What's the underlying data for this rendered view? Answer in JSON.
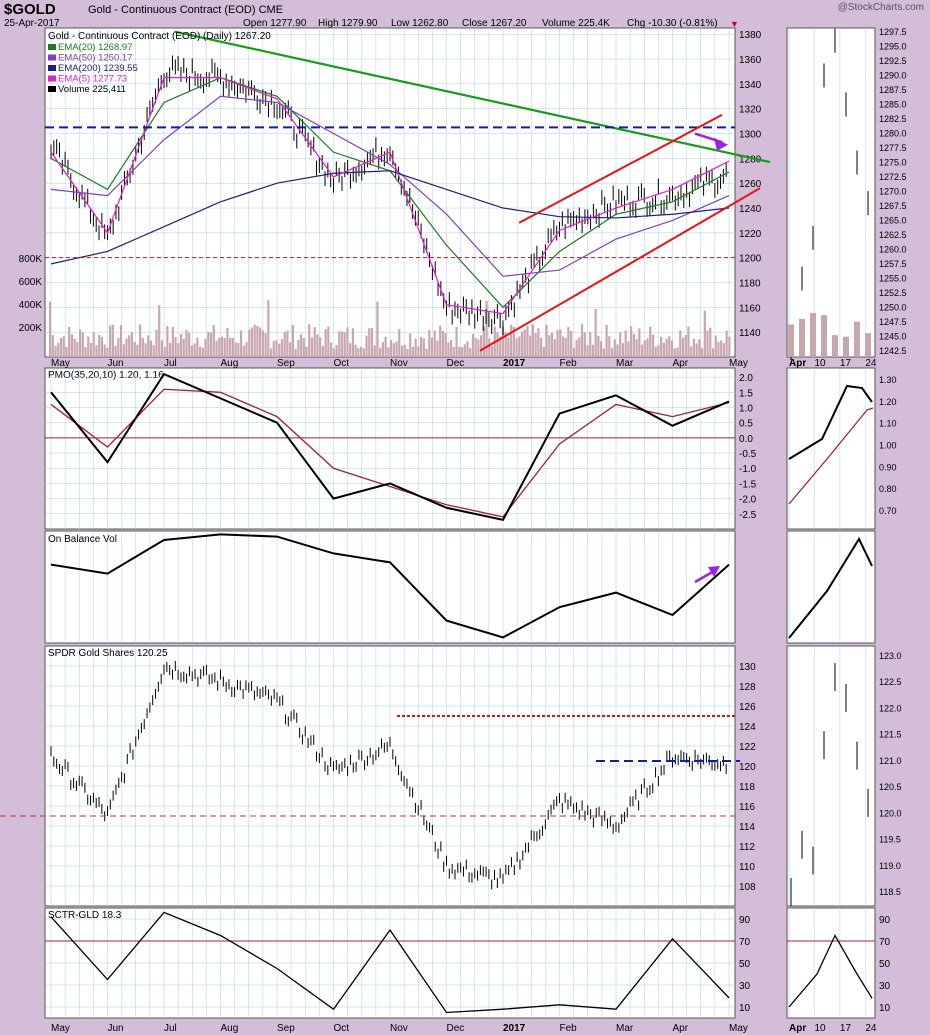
{
  "header": {
    "symbol": "$GOLD",
    "title": "Gold - Continuous Contract (EOD)  CME",
    "date": "25-Apr-2017",
    "open": "Open 1277.90",
    "high": "High 1279.90",
    "low": "Low 1262.80",
    "close": "Close 1267.20",
    "volume": "Volume 225.4K",
    "chg": "Chg -10.30 (-0.81%)",
    "logo": "@StockCharts.com"
  },
  "colors": {
    "background": "#d3bdd8",
    "panel": "#ffffff",
    "grid": "#aecde8",
    "price": "#000000",
    "ema20": "#1e7b1e",
    "ema50": "#8040c0",
    "ema200": "#202078",
    "ema5": "#e020c8",
    "volume": "#c8a6ae",
    "trendline_green": "#169c16",
    "channel_red": "#ee1111",
    "resistance_blue": "#0d1fa8",
    "dashed_red": "#b0222a",
    "purple_arrow": "#9a22e6",
    "pmo_signal": "#a0203c"
  },
  "x_axis": {
    "main_labels": [
      "May",
      "Jun",
      "Jul",
      "Aug",
      "Sep",
      "Oct",
      "Nov",
      "Dec",
      "2017",
      "Feb",
      "Mar",
      "Apr",
      "May"
    ],
    "mini_labels": [
      "Apr",
      "10",
      "17",
      "24"
    ]
  },
  "panels": {
    "price": {
      "legend_title": "Gold - Continuous Contract (EOD) (Daily) 1267.20",
      "legend": [
        {
          "name": "EMA(20) 1268.97",
          "color": "#1e7b1e"
        },
        {
          "name": "EMA(50) 1250.17",
          "color": "#8040c0"
        },
        {
          "name": "EMA(200) 1239.55",
          "color": "#202078"
        },
        {
          "name": "EMA(5) 1277.73",
          "color": "#e020c8"
        },
        {
          "name": "Volume 225,411",
          "color": "#000000"
        }
      ],
      "y_ticks": [
        1140,
        1160,
        1180,
        1200,
        1220,
        1240,
        1260,
        1280,
        1300,
        1320,
        1340,
        1360,
        1380
      ],
      "vol_ticks": [
        "200K",
        "400K",
        "600K",
        "800K"
      ],
      "mini_ticks": [
        "1242.5",
        "1245.0",
        "1247.5",
        "1250.0",
        "1252.5",
        "1255.0",
        "1257.5",
        "1260.0",
        "1262.5",
        "1265.0",
        "1267.5",
        "1270.0",
        "1272.5",
        "1275.0",
        "1277.5",
        "1280.0",
        "1282.5",
        "1285.0",
        "1287.5",
        "1290.0",
        "1292.5",
        "1295.0",
        "1297.5"
      ]
    },
    "pmo": {
      "label": "PMO(35,20,10) 1.20, 1.16",
      "y_ticks": [
        "-2.5",
        "-2.0",
        "-1.5",
        "-1.0",
        "-0.5",
        "0.0",
        "0.5",
        "1.0",
        "1.5",
        "2.0"
      ],
      "mini_ticks": [
        "0.70",
        "0.80",
        "0.90",
        "1.00",
        "1.10",
        "1.20",
        "1.30"
      ]
    },
    "obv": {
      "label": "On Balance Vol"
    },
    "gld": {
      "label": "SPDR Gold Shares 120.25",
      "y_ticks": [
        108,
        110,
        112,
        114,
        116,
        118,
        120,
        122,
        124,
        126,
        128,
        130
      ],
      "mini_ticks": [
        "118.5",
        "119.0",
        "119.5",
        "120.0",
        "120.5",
        "121.0",
        "121.5",
        "122.0",
        "122.5",
        "123.0"
      ]
    },
    "sctr": {
      "label": "SCTR-GLD 18.3",
      "y_ticks": [
        10,
        30,
        50,
        70,
        90
      ]
    }
  },
  "chart_data": [
    {
      "type": "line",
      "title": "Gold - Continuous Contract (EOD) (Daily) 1267.20",
      "x": [
        "2016-05",
        "2016-06",
        "2016-07",
        "2016-08",
        "2016-09",
        "2016-10",
        "2016-11",
        "2016-12",
        "2017-01",
        "2017-02",
        "2017-03",
        "2017-04",
        "2017-04-25"
      ],
      "series": [
        {
          "name": "Gold - Continuous Contract (EOD)",
          "values": [
            1290,
            1215,
            1350,
            1345,
            1325,
            1262,
            1290,
            1160,
            1152,
            1225,
            1245,
            1250,
            1267.2
          ]
        },
        {
          "name": "EMA(20) 1268.97",
          "values": [
            1280,
            1255,
            1325,
            1345,
            1330,
            1285,
            1270,
            1210,
            1160,
            1205,
            1235,
            1245,
            1269
          ]
        },
        {
          "name": "EMA(50) 1250.17",
          "values": [
            1255,
            1250,
            1295,
            1330,
            1325,
            1300,
            1275,
            1235,
            1185,
            1190,
            1215,
            1230,
            1250
          ]
        },
        {
          "name": "EMA(200) 1239.55",
          "values": [
            1195,
            1205,
            1225,
            1245,
            1260,
            1268,
            1270,
            1255,
            1240,
            1233,
            1232,
            1235,
            1240
          ]
        },
        {
          "name": "EMA(5) 1277.73",
          "values": [
            1285,
            1220,
            1345,
            1345,
            1328,
            1265,
            1285,
            1162,
            1155,
            1222,
            1240,
            1255,
            1277.7
          ]
        }
      ],
      "volume_series": {
        "name": "Volume 225,411",
        "unit": "shares"
      },
      "ylim": [
        1120,
        1385
      ]
    },
    {
      "type": "line",
      "title": "PMO(35,20,10) 1.20, 1.16",
      "x": [
        "2016-05",
        "2016-06",
        "2016-07",
        "2016-08",
        "2016-09",
        "2016-10",
        "2016-11",
        "2016-12",
        "2017-01",
        "2017-02",
        "2017-03",
        "2017-04",
        "2017-04-25"
      ],
      "series": [
        {
          "name": "PMO",
          "values": [
            1.5,
            -0.8,
            2.1,
            1.3,
            0.5,
            -2.0,
            -1.5,
            -2.3,
            -2.7,
            0.8,
            1.4,
            0.4,
            1.2
          ]
        },
        {
          "name": "Signal",
          "values": [
            1.1,
            -0.3,
            1.6,
            1.5,
            0.7,
            -1.0,
            -1.6,
            -2.2,
            -2.6,
            -0.2,
            1.1,
            0.7,
            1.16
          ]
        }
      ],
      "ylim": [
        -3,
        2.3
      ]
    },
    {
      "type": "line",
      "title": "On Balance Vol",
      "x": [
        "2016-05",
        "2016-06",
        "2016-07",
        "2016-08",
        "2016-09",
        "2016-10",
        "2016-11",
        "2016-12",
        "2017-01",
        "2017-02",
        "2017-03",
        "2017-04",
        "2017-04-25"
      ],
      "series": [
        {
          "name": "On Balance Vol",
          "values": [
            0.7,
            0.62,
            0.92,
            0.97,
            0.95,
            0.8,
            0.72,
            0.2,
            0.05,
            0.32,
            0.45,
            0.25,
            0.7
          ]
        }
      ],
      "ylim": [
        0,
        1
      ]
    },
    {
      "type": "line",
      "title": "SPDR Gold Shares 120.25",
      "x": [
        "2016-05",
        "2016-06",
        "2016-07",
        "2016-08",
        "2016-09",
        "2016-10",
        "2016-11",
        "2016-12",
        "2017-01",
        "2017-02",
        "2017-03",
        "2017-04",
        "2017-04-25"
      ],
      "series": [
        {
          "name": "SPDR Gold Shares",
          "values": [
            121,
            115,
            130,
            128.5,
            126.5,
            119.5,
            122,
            110,
            108.5,
            116.5,
            114,
            121,
            120.25
          ]
        }
      ],
      "ylim": [
        106,
        132
      ]
    },
    {
      "type": "line",
      "title": "SCTR-GLD 18.3",
      "x": [
        "2016-05",
        "2016-06",
        "2016-07",
        "2016-08",
        "2016-09",
        "2016-10",
        "2016-11",
        "2016-12",
        "2017-01",
        "2017-02",
        "2017-03",
        "2017-04",
        "2017-04-25"
      ],
      "series": [
        {
          "name": "SCTR-GLD",
          "values": [
            92,
            35,
            96,
            75,
            45,
            8,
            80,
            5,
            8,
            12,
            8,
            72,
            18.3
          ]
        }
      ],
      "ylim": [
        0,
        100
      ]
    }
  ]
}
